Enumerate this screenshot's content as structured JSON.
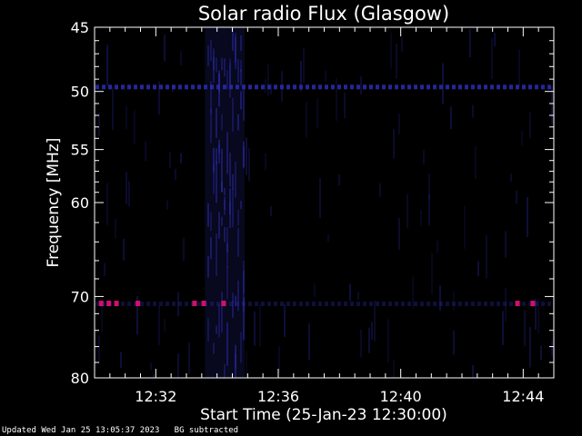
{
  "chart_data": {
    "type": "heatmap",
    "title": "Solar radio Flux (Glasgow)",
    "xlabel": "Start Time (25-Jan-23 12:30:00)",
    "ylabel": "Frequency [MHz]",
    "x_start": "12:30:00",
    "x_end": "12:45:00",
    "x_range_minutes": [
      0,
      15
    ],
    "x_ticks": [
      {
        "minute": 2,
        "label": "12:32"
      },
      {
        "minute": 6,
        "label": "12:36"
      },
      {
        "minute": 10,
        "label": "12:40"
      },
      {
        "minute": 14,
        "label": "12:44"
      }
    ],
    "ylim": [
      45,
      80
    ],
    "y_scale": "log",
    "y_inverted": true,
    "y_ticks": [
      45,
      50,
      55,
      60,
      70,
      80
    ],
    "background_color": "#000000",
    "signal_color": "#2a2aa8",
    "burst_color": "#d0106a",
    "features": [
      {
        "kind": "band",
        "freq_mhz": 49.6,
        "description": "persistent interference line"
      },
      {
        "kind": "band",
        "freq_mhz": 70.8,
        "description": "intermittent interference"
      },
      {
        "kind": "block",
        "from_minute": 3.6,
        "to_minute": 4.9,
        "freq_mhz": [
          45,
          80
        ]
      }
    ],
    "bursts": [
      {
        "minute": 0.2,
        "freq_mhz": 70.8
      },
      {
        "minute": 0.45,
        "freq_mhz": 70.8
      },
      {
        "minute": 0.7,
        "freq_mhz": 70.8
      },
      {
        "minute": 1.4,
        "freq_mhz": 70.8
      },
      {
        "minute": 3.25,
        "freq_mhz": 70.8
      },
      {
        "minute": 3.55,
        "freq_mhz": 70.8
      },
      {
        "minute": 4.2,
        "freq_mhz": 70.8
      },
      {
        "minute": 13.8,
        "freq_mhz": 70.8
      },
      {
        "minute": 14.3,
        "freq_mhz": 70.8
      }
    ]
  },
  "footer": {
    "updated": "Updated Wed Jan 25 13:05:37 2023",
    "note": "BG subtracted"
  }
}
